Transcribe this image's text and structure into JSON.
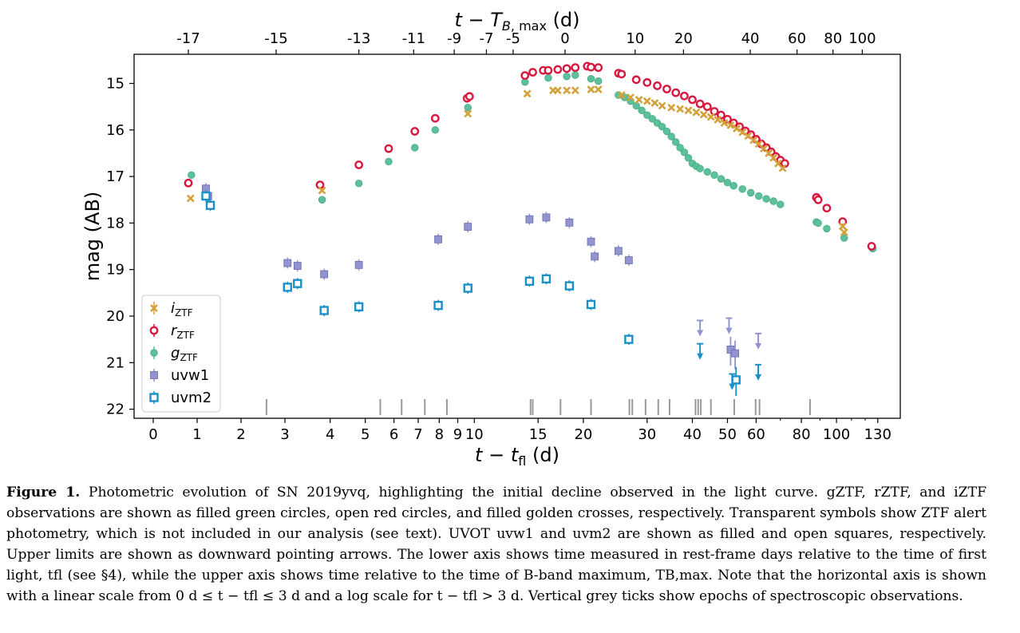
{
  "figure": {
    "caption_label": "Figure 1.",
    "caption_text": "Photometric evolution of SN 2019yvq, highlighting the initial decline observed in the light curve. gZTF, rZTF, and iZTF observations are shown as filled green circles, open red circles, and filled golden crosses, respectively. Transparent symbols show ZTF alert photometry, which is not included in our analysis (see text). UVOT uvw1 and uvm2 are shown as filled and open squares, respectively. Upper limits are shown as downward pointing arrows. The lower axis shows time measured in rest-frame days relative to the time of first light, tfl (see §4), while the upper axis shows time relative to the time of B-band maximum, TB,max. Note that the horizontal axis is shown with a linear scale from 0 d ≤ t − tfl ≤ 3 d and a log scale for t − tfl > 3 d. Vertical grey ticks show epochs of spectroscopic observations."
  },
  "chart_data": {
    "type": "scatter",
    "title": "",
    "xlabel": "t − t_fl (d)",
    "x2label": "t − T_B,max (d)",
    "ylabel": "mag (AB)",
    "x_scale": "linear for 0–3 d, log above 3 d",
    "xlim": [
      0,
      150
    ],
    "ylim": [
      22.15,
      14.6
    ],
    "y_inverted": true,
    "grid": false,
    "legend_position": "lower-left",
    "xticks": [
      0,
      1,
      2,
      3,
      4,
      5,
      6,
      7,
      8,
      9,
      10,
      15,
      20,
      30,
      40,
      50,
      60,
      80,
      100,
      130
    ],
    "xticklabels": [
      "0",
      "1",
      "2",
      "3",
      "4",
      "5",
      "6",
      "7",
      "8",
      "9",
      "10",
      "15",
      "20",
      "30",
      "40",
      "50",
      "60",
      "80",
      "100",
      "130"
    ],
    "x2_offset_tfl_at_tBmax": 17.8,
    "x2ticks": [
      -17,
      -15,
      -13,
      -11,
      -9,
      -7,
      -5,
      0,
      10,
      20,
      40,
      60,
      80,
      100
    ],
    "x2ticklabels": [
      "-17",
      "-15",
      "-13",
      "-11",
      "-9",
      "-7",
      "-5",
      "0",
      "10",
      "20",
      "40",
      "60",
      "80",
      "100"
    ],
    "yticks": [
      15,
      16,
      17,
      18,
      19,
      20,
      21,
      22
    ],
    "yticklabels": [
      "15",
      "16",
      "17",
      "18",
      "19",
      "20",
      "21",
      "22"
    ],
    "colors": {
      "i": "#d4a13a",
      "r": "#d7193f",
      "g": "#5cc09a",
      "uvw1": "#9294d0",
      "uvw1_edge": "#6a6cb0",
      "uvm2": "#1a90c8",
      "spec": "#999999"
    },
    "legend": [
      {
        "key": "i",
        "label": "i",
        "sub": "ZTF",
        "italic": true
      },
      {
        "key": "r",
        "label": "r",
        "sub": "ZTF",
        "italic": true
      },
      {
        "key": "g",
        "label": "g",
        "sub": "ZTF",
        "italic": true
      },
      {
        "key": "uvw1",
        "label": "uvw1",
        "sub": "",
        "italic": false
      },
      {
        "key": "uvm2",
        "label": "uvm2",
        "sub": "",
        "italic": false
      }
    ],
    "series": [
      {
        "name": "iZTF",
        "key": "i",
        "marker": "cross",
        "points": [
          [
            0.85,
            17.47
          ],
          [
            3.8,
            17.3
          ],
          [
            9.6,
            15.65
          ],
          [
            14.0,
            15.22
          ],
          [
            16.5,
            15.15
          ],
          [
            17.0,
            15.15
          ],
          [
            18.0,
            15.15
          ],
          [
            19.0,
            15.15
          ],
          [
            21.0,
            15.13
          ],
          [
            22.0,
            15.13
          ],
          [
            25.5,
            15.25
          ],
          [
            27.0,
            15.3
          ],
          [
            28.5,
            15.35
          ],
          [
            30.0,
            15.38
          ],
          [
            31.5,
            15.42
          ],
          [
            33.0,
            15.48
          ],
          [
            35.0,
            15.52
          ],
          [
            37.0,
            15.55
          ],
          [
            39.0,
            15.58
          ],
          [
            41.0,
            15.62
          ],
          [
            43.0,
            15.67
          ],
          [
            45.0,
            15.72
          ],
          [
            47.0,
            15.78
          ],
          [
            49.0,
            15.85
          ],
          [
            51.0,
            15.9
          ],
          [
            53.0,
            15.97
          ],
          [
            55.0,
            16.05
          ],
          [
            57.0,
            16.13
          ],
          [
            59.0,
            16.22
          ],
          [
            61.0,
            16.3
          ],
          [
            63.0,
            16.4
          ],
          [
            65.0,
            16.5
          ],
          [
            67.0,
            16.6
          ],
          [
            69.0,
            16.72
          ],
          [
            71.0,
            16.82
          ],
          [
            104.0,
            18.07
          ],
          [
            105.0,
            18.2
          ]
        ]
      },
      {
        "name": "rZTF",
        "key": "r",
        "marker": "open-circle",
        "points": [
          [
            0.8,
            17.14
          ],
          [
            3.75,
            17.18
          ],
          [
            4.8,
            16.75
          ],
          [
            5.8,
            16.4
          ],
          [
            6.85,
            16.03
          ],
          [
            7.8,
            15.75
          ],
          [
            9.55,
            15.32
          ],
          [
            9.7,
            15.28
          ],
          [
            13.8,
            14.83
          ],
          [
            14.5,
            14.76
          ],
          [
            15.5,
            14.72
          ],
          [
            16.0,
            14.72
          ],
          [
            17.0,
            14.7
          ],
          [
            18.0,
            14.68
          ],
          [
            19.0,
            14.66
          ],
          [
            20.5,
            14.63
          ],
          [
            21.0,
            14.65
          ],
          [
            22.0,
            14.66
          ],
          [
            25.0,
            14.78
          ],
          [
            25.5,
            14.8
          ],
          [
            28.0,
            14.92
          ],
          [
            30.0,
            14.98
          ],
          [
            32.0,
            15.05
          ],
          [
            34.0,
            15.12
          ],
          [
            36.0,
            15.2
          ],
          [
            38.0,
            15.27
          ],
          [
            40.0,
            15.35
          ],
          [
            42.0,
            15.44
          ],
          [
            44.0,
            15.5
          ],
          [
            46.0,
            15.6
          ],
          [
            48.0,
            15.68
          ],
          [
            50.0,
            15.77
          ],
          [
            52.0,
            15.85
          ],
          [
            54.0,
            15.93
          ],
          [
            56.0,
            16.02
          ],
          [
            58.0,
            16.1
          ],
          [
            60.0,
            16.2
          ],
          [
            62.0,
            16.3
          ],
          [
            64.0,
            16.38
          ],
          [
            66.0,
            16.47
          ],
          [
            68.0,
            16.57
          ],
          [
            70.0,
            16.65
          ],
          [
            72.0,
            16.72
          ],
          [
            88.0,
            17.45
          ],
          [
            89.0,
            17.5
          ],
          [
            94.0,
            17.68
          ],
          [
            104.0,
            17.97
          ],
          [
            125.0,
            18.5
          ]
        ]
      },
      {
        "name": "gZTF",
        "key": "g",
        "marker": "filled-circle",
        "points": [
          [
            0.87,
            16.97
          ],
          [
            3.8,
            17.5
          ],
          [
            4.8,
            17.15
          ],
          [
            5.8,
            16.68
          ],
          [
            6.85,
            16.38
          ],
          [
            7.8,
            16.0
          ],
          [
            9.6,
            15.52
          ],
          [
            13.8,
            14.97
          ],
          [
            16.0,
            14.88
          ],
          [
            18.0,
            14.85
          ],
          [
            19.0,
            14.82
          ],
          [
            21.0,
            14.9
          ],
          [
            22.0,
            14.95
          ],
          [
            25.0,
            15.25
          ],
          [
            26.0,
            15.3
          ],
          [
            27.0,
            15.38
          ],
          [
            28.0,
            15.48
          ],
          [
            29.0,
            15.58
          ],
          [
            30.0,
            15.68
          ],
          [
            31.0,
            15.76
          ],
          [
            32.0,
            15.85
          ],
          [
            33.0,
            15.93
          ],
          [
            34.0,
            16.03
          ],
          [
            35.0,
            16.14
          ],
          [
            36.0,
            16.26
          ],
          [
            37.0,
            16.38
          ],
          [
            38.0,
            16.48
          ],
          [
            39.0,
            16.6
          ],
          [
            40.0,
            16.72
          ],
          [
            41.0,
            16.78
          ],
          [
            42.0,
            16.83
          ],
          [
            44.0,
            16.9
          ],
          [
            46.0,
            16.97
          ],
          [
            48.0,
            17.05
          ],
          [
            50.0,
            17.13
          ],
          [
            52.0,
            17.2
          ],
          [
            55.0,
            17.27
          ],
          [
            58.0,
            17.35
          ],
          [
            61.0,
            17.42
          ],
          [
            64.0,
            17.48
          ],
          [
            67.0,
            17.53
          ],
          [
            70.0,
            17.6
          ],
          [
            88.0,
            17.98
          ],
          [
            89.0,
            18.0
          ],
          [
            94.0,
            18.12
          ],
          [
            105.0,
            18.32
          ],
          [
            126.0,
            18.55
          ]
        ]
      },
      {
        "name": "uvw1",
        "key": "uvw1",
        "marker": "filled-square",
        "points": [
          [
            1.2,
            17.26
          ],
          [
            1.25,
            17.42
          ],
          [
            3.05,
            18.86
          ],
          [
            3.25,
            18.92
          ],
          [
            3.85,
            19.1
          ],
          [
            4.8,
            18.9
          ],
          [
            7.95,
            18.35
          ],
          [
            9.6,
            18.08
          ],
          [
            14.2,
            17.92
          ],
          [
            15.8,
            17.88
          ],
          [
            18.3,
            17.99
          ],
          [
            21.0,
            18.4
          ],
          [
            21.5,
            18.72
          ],
          [
            25.0,
            18.6
          ],
          [
            26.7,
            18.8
          ]
        ],
        "upper_limits": [
          [
            42.0,
            20.3
          ],
          [
            50.5,
            20.25
          ],
          [
            60.8,
            20.58
          ]
        ],
        "detections_faint": [
          [
            51.0,
            20.72
          ],
          [
            52.5,
            20.8
          ]
        ]
      },
      {
        "name": "uvm2",
        "key": "uvm2",
        "marker": "open-square",
        "points": [
          [
            1.2,
            17.42
          ],
          [
            1.3,
            17.62
          ],
          [
            3.05,
            19.38
          ],
          [
            3.25,
            19.3
          ],
          [
            3.85,
            19.88
          ],
          [
            4.8,
            19.8
          ],
          [
            7.95,
            19.77
          ],
          [
            9.6,
            19.4
          ],
          [
            14.2,
            19.25
          ],
          [
            15.8,
            19.2
          ],
          [
            18.3,
            19.35
          ],
          [
            21.0,
            19.75
          ],
          [
            26.7,
            20.5
          ]
        ],
        "upper_limits": [
          [
            42.0,
            20.8
          ],
          [
            51.5,
            21.45
          ],
          [
            60.8,
            21.25
          ]
        ],
        "detections_faint": [
          [
            52.8,
            21.37
          ]
        ]
      }
    ],
    "spectroscopy_epochs": [
      2.58,
      5.5,
      6.3,
      7.3,
      8.4,
      14.3,
      14.5,
      17.3,
      21.0,
      26.8,
      27.3,
      29.7,
      32.2,
      34.6,
      40.8,
      41.5,
      42.2,
      45.0,
      52.2,
      59.8,
      61.3,
      84.5
    ]
  }
}
